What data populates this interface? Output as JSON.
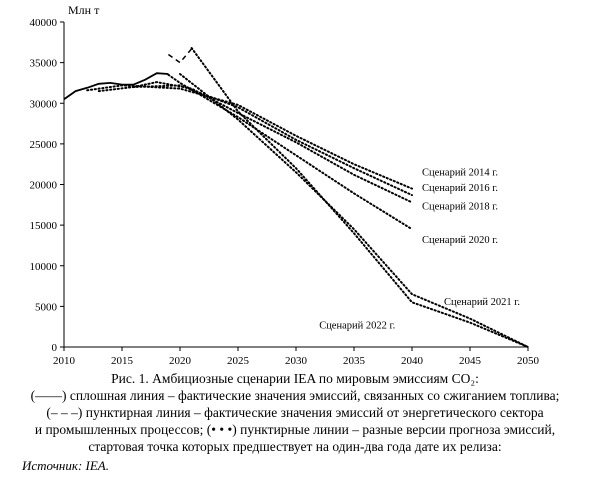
{
  "chart_data": {
    "type": "line",
    "unit_label": "Млн т",
    "xlim": [
      2010,
      2050
    ],
    "ylim": [
      0,
      40000
    ],
    "x_ticks": [
      2010,
      2015,
      2020,
      2025,
      2030,
      2035,
      2040,
      2045,
      2050
    ],
    "y_ticks": [
      0,
      5000,
      10000,
      15000,
      20000,
      25000,
      30000,
      35000,
      40000
    ],
    "grid": false,
    "actual_combustion": {
      "style": "solid",
      "x": [
        2010,
        2011,
        2012,
        2013,
        2014,
        2015,
        2016,
        2017,
        2018,
        2019
      ],
      "y": [
        30500,
        31500,
        31900,
        32400,
        32500,
        32300,
        32300,
        32900,
        33700,
        33600
      ]
    },
    "actual_energy_industry": {
      "style": "dashed",
      "x": [
        2019,
        2020,
        2021
      ],
      "y": [
        36000,
        35000,
        36700
      ]
    },
    "scenarios": [
      {
        "name": "Сценарий 2014 г.",
        "x": [
          2012,
          2015,
          2020,
          2025,
          2030,
          2035,
          2040
        ],
        "y": [
          31600,
          32200,
          31800,
          29800,
          26000,
          22500,
          19500
        ]
      },
      {
        "name": "Сценарий 2016 г.",
        "x": [
          2013,
          2016,
          2020,
          2025,
          2030,
          2035,
          2040
        ],
        "y": [
          31500,
          32000,
          32200,
          29500,
          25500,
          22000,
          18700
        ]
      },
      {
        "name": "Сценарий 2018 г.",
        "x": [
          2016,
          2018,
          2021,
          2025,
          2030,
          2035,
          2040
        ],
        "y": [
          32000,
          32600,
          31800,
          28800,
          25200,
          21200,
          17800
        ]
      },
      {
        "name": "Сценарий 2020 г.",
        "x": [
          2019,
          2020,
          2025,
          2030,
          2035,
          2040
        ],
        "y": [
          33500,
          32500,
          28300,
          23600,
          18900,
          14500
        ]
      },
      {
        "name": "Сценарий 2021 г.",
        "x": [
          2020,
          2025,
          2030,
          2035,
          2040,
          2045,
          2050
        ],
        "y": [
          33600,
          28000,
          21500,
          14500,
          6500,
          3500,
          0
        ]
      },
      {
        "name": "Сценарий 2022 г.",
        "x": [
          2021,
          2025,
          2030,
          2035,
          2040,
          2045,
          2050
        ],
        "y": [
          36800,
          29000,
          22000,
          14000,
          5500,
          3000,
          0
        ]
      }
    ]
  },
  "caption": {
    "line1": "Рис. 1. Амбициозные сценарии IEA по мировым эмиссиям CO₂:",
    "line2": "(——) сплошная линия – фактические значения эмиссий, связанных со сжиганием топлива;",
    "line3": "(– – –) пунктирная линия – фактические значения эмиссий от энергетического сектора",
    "line4": "и промышленных процессов; (• • •) пунктирные линии – разные версии прогноза эмиссий,",
    "line5": "стартовая точка которых предшествует на один-два года дате их релиза:"
  },
  "source": "Источник: IEA."
}
